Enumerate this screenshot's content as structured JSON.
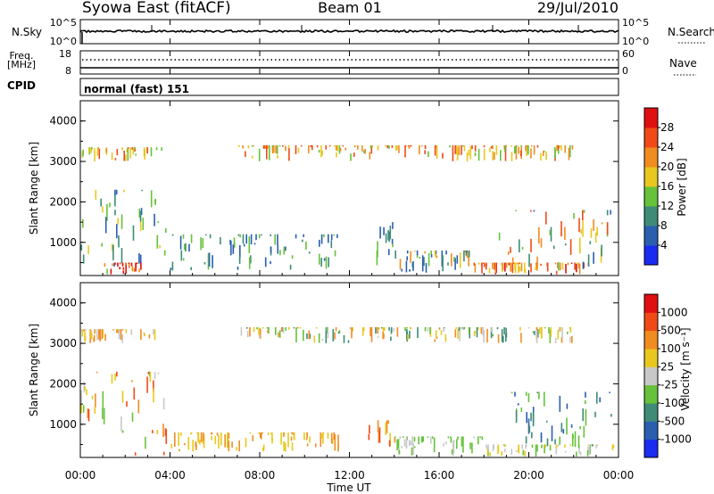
{
  "header": {
    "station": "Syowa East (fitACF)",
    "beam": "Beam 01",
    "date": "29/Jul/2010"
  },
  "strips": {
    "nsky_label": "N.Sky",
    "nsearch_label": "N.Search",
    "nsky_ticks": [
      "10^5",
      "10^0"
    ],
    "nsky_right_ticks": [
      "10^5",
      "10^0"
    ],
    "freq_label": "Freq.",
    "freq_unit": "[MHz]",
    "freq_ticks": [
      "18",
      "8"
    ],
    "nave_label": "Nave",
    "nave_ticks": [
      "60",
      "0"
    ],
    "cpid_label": "CPID",
    "cpid_value": "normal (fast) 151"
  },
  "axes": {
    "ylabel": "Slant Range [km]",
    "xlabel": "Time UT",
    "x_ticks": [
      "00:00",
      "04:00",
      "08:00",
      "12:00",
      "16:00",
      "20:00",
      "00:00"
    ],
    "y_ticks": [
      "1000",
      "2000",
      "3000",
      "4000"
    ]
  },
  "colorbars": {
    "power": {
      "label": "Power [dB]",
      "ticks": [
        "4",
        "8",
        "12",
        "16",
        "20",
        "24",
        "28"
      ],
      "colors": [
        "#1a2cf0",
        "#2a5fb0",
        "#3e8c78",
        "#66c23a",
        "#e8c81e",
        "#f08c20",
        "#f04a18",
        "#e01010"
      ]
    },
    "velocity": {
      "label": "Velocity [m s⁻¹]",
      "ticks": [
        "1000",
        "500",
        "100",
        "25",
        "-25",
        "-100",
        "-500",
        "-1000"
      ],
      "colors": [
        "#1a2cf0",
        "#2a5fb0",
        "#3e8c78",
        "#66c23a",
        "#c8c8c8",
        "#e8c81e",
        "#f08c20",
        "#f04a18",
        "#e01010"
      ]
    }
  },
  "chart_data": [
    {
      "type": "heatmap",
      "name": "power",
      "x_range_hours": [
        0,
        24
      ],
      "y_range_km": [
        180,
        4500
      ],
      "regions": [
        {
          "t": [
            0.0,
            3.8
          ],
          "r": [
            200,
            2300
          ],
          "level": [
            1,
            4
          ]
        },
        {
          "t": [
            1.0,
            2.8
          ],
          "r": [
            200,
            500
          ],
          "level": [
            5,
            8
          ]
        },
        {
          "t": [
            0.0,
            3.6
          ],
          "r": [
            3000,
            3350
          ],
          "level": [
            3,
            6
          ]
        },
        {
          "t": [
            4.0,
            11.5
          ],
          "r": [
            300,
            1200
          ],
          "level": [
            1,
            3
          ]
        },
        {
          "t": [
            12.8,
            14.0
          ],
          "r": [
            400,
            1500
          ],
          "level": [
            1,
            4
          ]
        },
        {
          "t": [
            14.0,
            17.5
          ],
          "r": [
            250,
            800
          ],
          "level": [
            1,
            5
          ]
        },
        {
          "t": [
            17.5,
            22.8
          ],
          "r": [
            200,
            500
          ],
          "level": [
            4,
            7
          ]
        },
        {
          "t": [
            18.5,
            23.8
          ],
          "r": [
            300,
            1800
          ],
          "level": [
            1,
            6
          ]
        },
        {
          "t": [
            7.0,
            22.0
          ],
          "r": [
            3000,
            3400
          ],
          "level": [
            3,
            6
          ]
        }
      ]
    },
    {
      "type": "heatmap",
      "name": "velocity",
      "x_range_hours": [
        0,
        24
      ],
      "y_range_km": [
        180,
        4500
      ],
      "regions": [
        {
          "t": [
            0.0,
            3.8
          ],
          "r": [
            200,
            2300
          ],
          "level": [
            3,
            7
          ]
        },
        {
          "t": [
            0.0,
            3.6
          ],
          "r": [
            3000,
            3350
          ],
          "level": [
            4,
            6
          ]
        },
        {
          "t": [
            4.0,
            11.5
          ],
          "r": [
            300,
            800
          ],
          "level": [
            5,
            6
          ]
        },
        {
          "t": [
            12.8,
            14.0
          ],
          "r": [
            400,
            1100
          ],
          "level": [
            5,
            7
          ]
        },
        {
          "t": [
            14.0,
            18.0
          ],
          "r": [
            200,
            700
          ],
          "level": [
            3,
            4
          ]
        },
        {
          "t": [
            18.0,
            23.8
          ],
          "r": [
            200,
            500
          ],
          "level": [
            3,
            5
          ]
        },
        {
          "t": [
            19.0,
            23.8
          ],
          "r": [
            400,
            1800
          ],
          "level": [
            1,
            3
          ]
        },
        {
          "t": [
            7.0,
            22.0
          ],
          "r": [
            3000,
            3400
          ],
          "level": [
            2,
            6
          ]
        }
      ]
    }
  ]
}
